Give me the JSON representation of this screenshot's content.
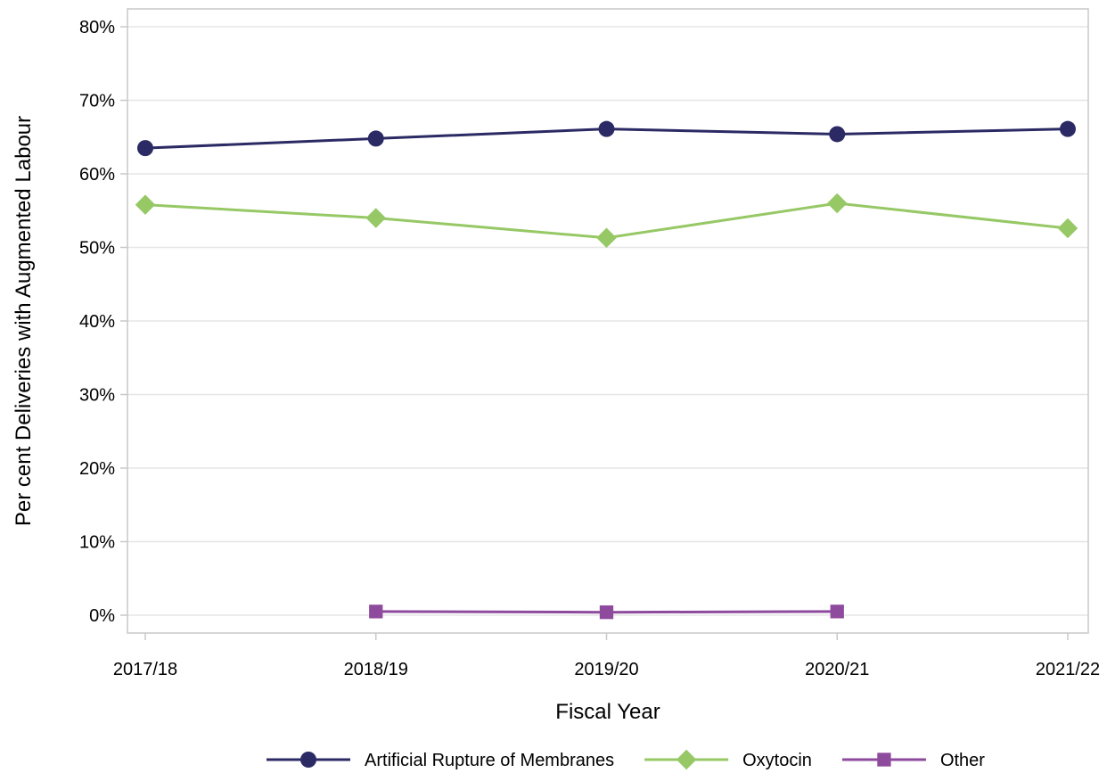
{
  "chart_data": {
    "type": "line",
    "title": "",
    "xlabel": "Fiscal Year",
    "ylabel": "Per cent Deliveries with Augmented Labour",
    "categories": [
      "2017/18",
      "2018/19",
      "2019/20",
      "2020/21",
      "2021/22"
    ],
    "ylim": [
      0,
      80
    ],
    "yticks": [
      0,
      10,
      20,
      30,
      40,
      50,
      60,
      70,
      80
    ],
    "ytick_suffix": "%",
    "grid": "horizontal",
    "legend_position": "bottom",
    "series": [
      {
        "name": "Artificial Rupture of Membranes",
        "marker": "circle",
        "color": "#2b2a64",
        "values": [
          63.5,
          64.8,
          66.1,
          65.4,
          66.1
        ]
      },
      {
        "name": "Oxytocin",
        "marker": "diamond",
        "color": "#96c865",
        "values": [
          55.8,
          54.0,
          51.3,
          56.0,
          52.6
        ]
      },
      {
        "name": "Other",
        "marker": "square",
        "color": "#8e4a9c",
        "values": [
          null,
          0.5,
          0.4,
          0.5,
          null
        ]
      }
    ]
  }
}
